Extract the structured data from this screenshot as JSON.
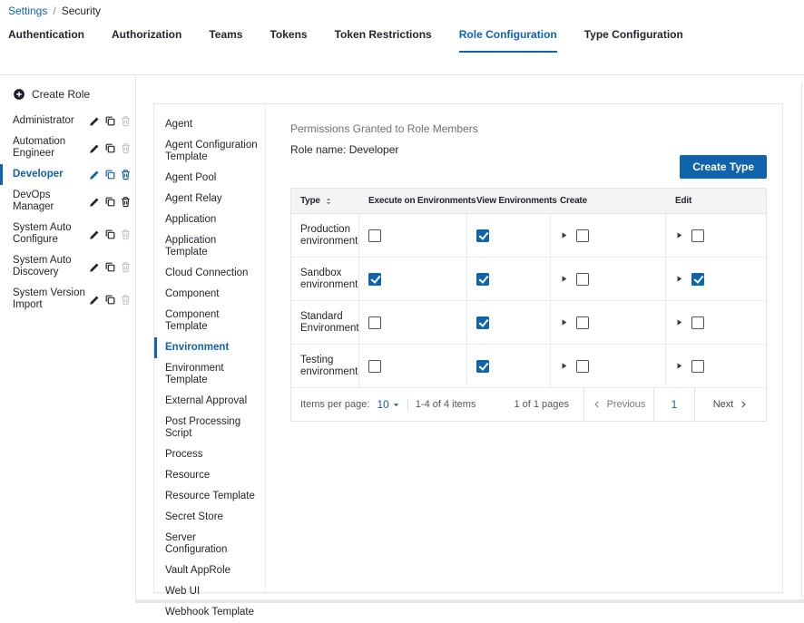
{
  "colors": {
    "accent": "#1063ad",
    "dark_text": "#24252e",
    "muted_text": "#6f6f75",
    "border": "#e4e4e8",
    "table_grid": "#ececf0",
    "table_header_bg": "#f4f4f6",
    "disabled_icon": "#c7c7cd"
  },
  "breadcrumb": {
    "settings_label": "Settings",
    "separator": "/",
    "current": "Security"
  },
  "tabs": [
    {
      "label": "Authentication",
      "active": false
    },
    {
      "label": "Authorization",
      "active": false
    },
    {
      "label": "Teams",
      "active": false
    },
    {
      "label": "Tokens",
      "active": false
    },
    {
      "label": "Token Restrictions",
      "active": false
    },
    {
      "label": "Role Configuration",
      "active": true
    },
    {
      "label": "Type Configuration",
      "active": false
    }
  ],
  "sidebar": {
    "create_role_label": "Create Role",
    "roles": [
      {
        "name": "Administrator",
        "selected": false,
        "delete_enabled": false
      },
      {
        "name": "Automation Engineer",
        "selected": false,
        "delete_enabled": false
      },
      {
        "name": "Developer",
        "selected": true,
        "delete_enabled": true
      },
      {
        "name": "DevOps Manager",
        "selected": false,
        "delete_enabled": true
      },
      {
        "name": "System Auto Configure",
        "selected": false,
        "delete_enabled": false
      },
      {
        "name": "System Auto Discovery",
        "selected": false,
        "delete_enabled": false
      },
      {
        "name": "System Version Import",
        "selected": false,
        "delete_enabled": false
      }
    ]
  },
  "types_panel": {
    "items": [
      "Agent",
      "Agent Configuration Template",
      "Agent Pool",
      "Agent Relay",
      "Application",
      "Application Template",
      "Cloud Connection",
      "Component",
      "Component Template",
      "Environment",
      "Environment Template",
      "External Approval",
      "Post Processing Script",
      "Process",
      "Resource",
      "Resource Template",
      "Secret Store",
      "Server Configuration",
      "Vault AppRole",
      "Web UI",
      "Webhook Template"
    ],
    "selected": "Environment"
  },
  "panel": {
    "title": "Permissions Granted to Role Members",
    "role_name": "Role name: Developer",
    "create_type_label": "Create Type"
  },
  "table": {
    "columns": [
      {
        "label": "Type",
        "sortable": true
      },
      {
        "label": "Execute on Environments",
        "sortable": false
      },
      {
        "label": "View Environments",
        "sortable": false
      },
      {
        "label": "Create",
        "sortable": false
      },
      {
        "label": "Edit",
        "sortable": false
      }
    ],
    "rows": [
      {
        "type": "Production environment",
        "execute": false,
        "view": true,
        "create": false,
        "edit": false
      },
      {
        "type": "Sandbox environment",
        "execute": true,
        "view": true,
        "create": false,
        "edit": true
      },
      {
        "type": "Standard Environment",
        "execute": false,
        "view": true,
        "create": false,
        "edit": false
      },
      {
        "type": "Testing environment",
        "execute": false,
        "view": true,
        "create": false,
        "edit": false
      }
    ]
  },
  "pagination": {
    "items_per_page_label": "Items per page:",
    "items_per_page_value": "10",
    "range_label": "1-4 of 4 items",
    "page_label": "1 of 1 pages",
    "previous_label": "Previous",
    "current_page": "1",
    "next_label": "Next"
  }
}
